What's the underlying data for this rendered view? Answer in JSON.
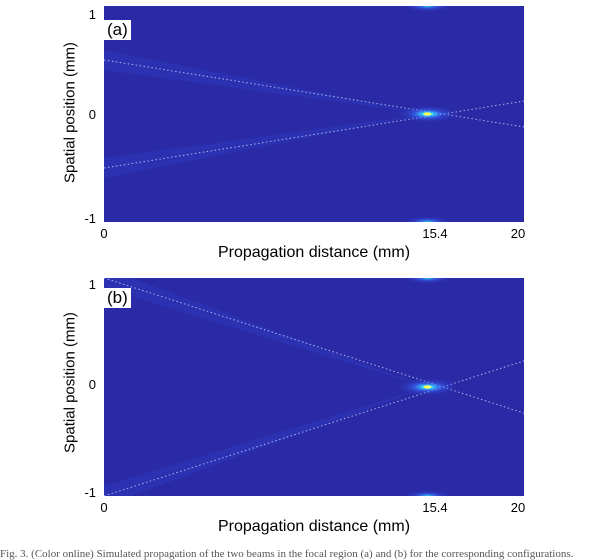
{
  "figure": {
    "panels": [
      {
        "label": "(a)",
        "ylabel": "Spatial position (mm)",
        "xlabel": "Propagation distance (mm)",
        "yticks": [
          "1",
          "0",
          "-1"
        ],
        "xticks": [
          "0",
          "15.4",
          "20"
        ]
      },
      {
        "label": "(b)",
        "ylabel": "Spatial position (mm)",
        "xlabel": "Propagation distance (mm)",
        "yticks": [
          "1",
          "0",
          "-1"
        ],
        "xticks": [
          "0",
          "15.4",
          "20"
        ]
      }
    ]
  },
  "chart_data": [
    {
      "type": "heatmap",
      "title": "(a)",
      "xlabel": "Propagation distance (mm)",
      "ylabel": "Spatial position (mm)",
      "xlim": [
        0,
        20
      ],
      "ylim": [
        -1,
        1
      ],
      "x_ticks": [
        0,
        15.4,
        20
      ],
      "y_ticks": [
        1,
        0,
        -1
      ],
      "colormap": [
        "#2a2aa6",
        "#3a6aff",
        "#34e0ff",
        "#ffff60"
      ],
      "focus": {
        "x": 15.4,
        "y": 0
      },
      "rays": [
        {
          "from": [
            0,
            0.5
          ],
          "to": [
            20,
            -0.12
          ]
        },
        {
          "from": [
            0,
            -0.5
          ],
          "to": [
            20,
            0.12
          ]
        }
      ],
      "edge_foci": [
        {
          "x": 15.4,
          "y": 1
        },
        {
          "x": 15.4,
          "y": -1
        }
      ]
    },
    {
      "type": "heatmap",
      "title": "(b)",
      "xlabel": "Propagation distance (mm)",
      "ylabel": "Spatial position (mm)",
      "xlim": [
        0,
        20
      ],
      "ylim": [
        -1,
        1
      ],
      "x_ticks": [
        0,
        15.4,
        20
      ],
      "y_ticks": [
        1,
        0,
        -1
      ],
      "colormap": [
        "#2a2aa6",
        "#3a6aff",
        "#34e0ff",
        "#ffff60"
      ],
      "focus": {
        "x": 15.4,
        "y": 0
      },
      "rays": [
        {
          "from": [
            0,
            1
          ],
          "to": [
            20,
            -0.24
          ]
        },
        {
          "from": [
            0,
            -1
          ],
          "to": [
            20,
            0.24
          ]
        }
      ],
      "edge_foci": [
        {
          "x": 15.4,
          "y": 1
        },
        {
          "x": 15.4,
          "y": -1
        }
      ]
    }
  ],
  "caption": "Fig. 3. (Color online) Simulated propagation of the two beams in the focal region (a) and (b) for the corresponding configurations."
}
